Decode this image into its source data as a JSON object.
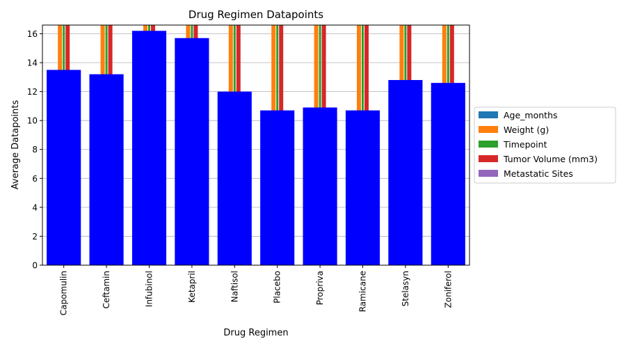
{
  "chart_data": {
    "type": "bar",
    "title": "Drug Regimen Datapoints",
    "xlabel": "Drug Regimen",
    "ylabel": "Average Datapoints",
    "ylim": [
      0,
      16.6
    ],
    "yticks": [
      0,
      2,
      4,
      6,
      8,
      10,
      12,
      14,
      16
    ],
    "grid": true,
    "legend_position": "right",
    "categories": [
      "Capomulin",
      "Ceftamin",
      "Infubinol",
      "Ketapril",
      "Naftisol",
      "Placebo",
      "Propriva",
      "Ramicane",
      "Stelasyn",
      "Zoniferol"
    ],
    "legend_series": [
      {
        "name": "Age_months",
        "color": "#1f77b4"
      },
      {
        "name": "Weight (g)",
        "color": "#ff7f0e"
      },
      {
        "name": "Timepoint",
        "color": "#2ca02c"
      },
      {
        "name": "Tumor Volume (mm3)",
        "color": "#d62728"
      },
      {
        "name": "Metastatic Sites",
        "color": "#9467bd"
      }
    ],
    "main_series": {
      "color": "#0000ff",
      "values": [
        13.5,
        13.2,
        16.2,
        15.7,
        12.0,
        10.7,
        10.9,
        10.7,
        12.8,
        12.6
      ]
    }
  }
}
